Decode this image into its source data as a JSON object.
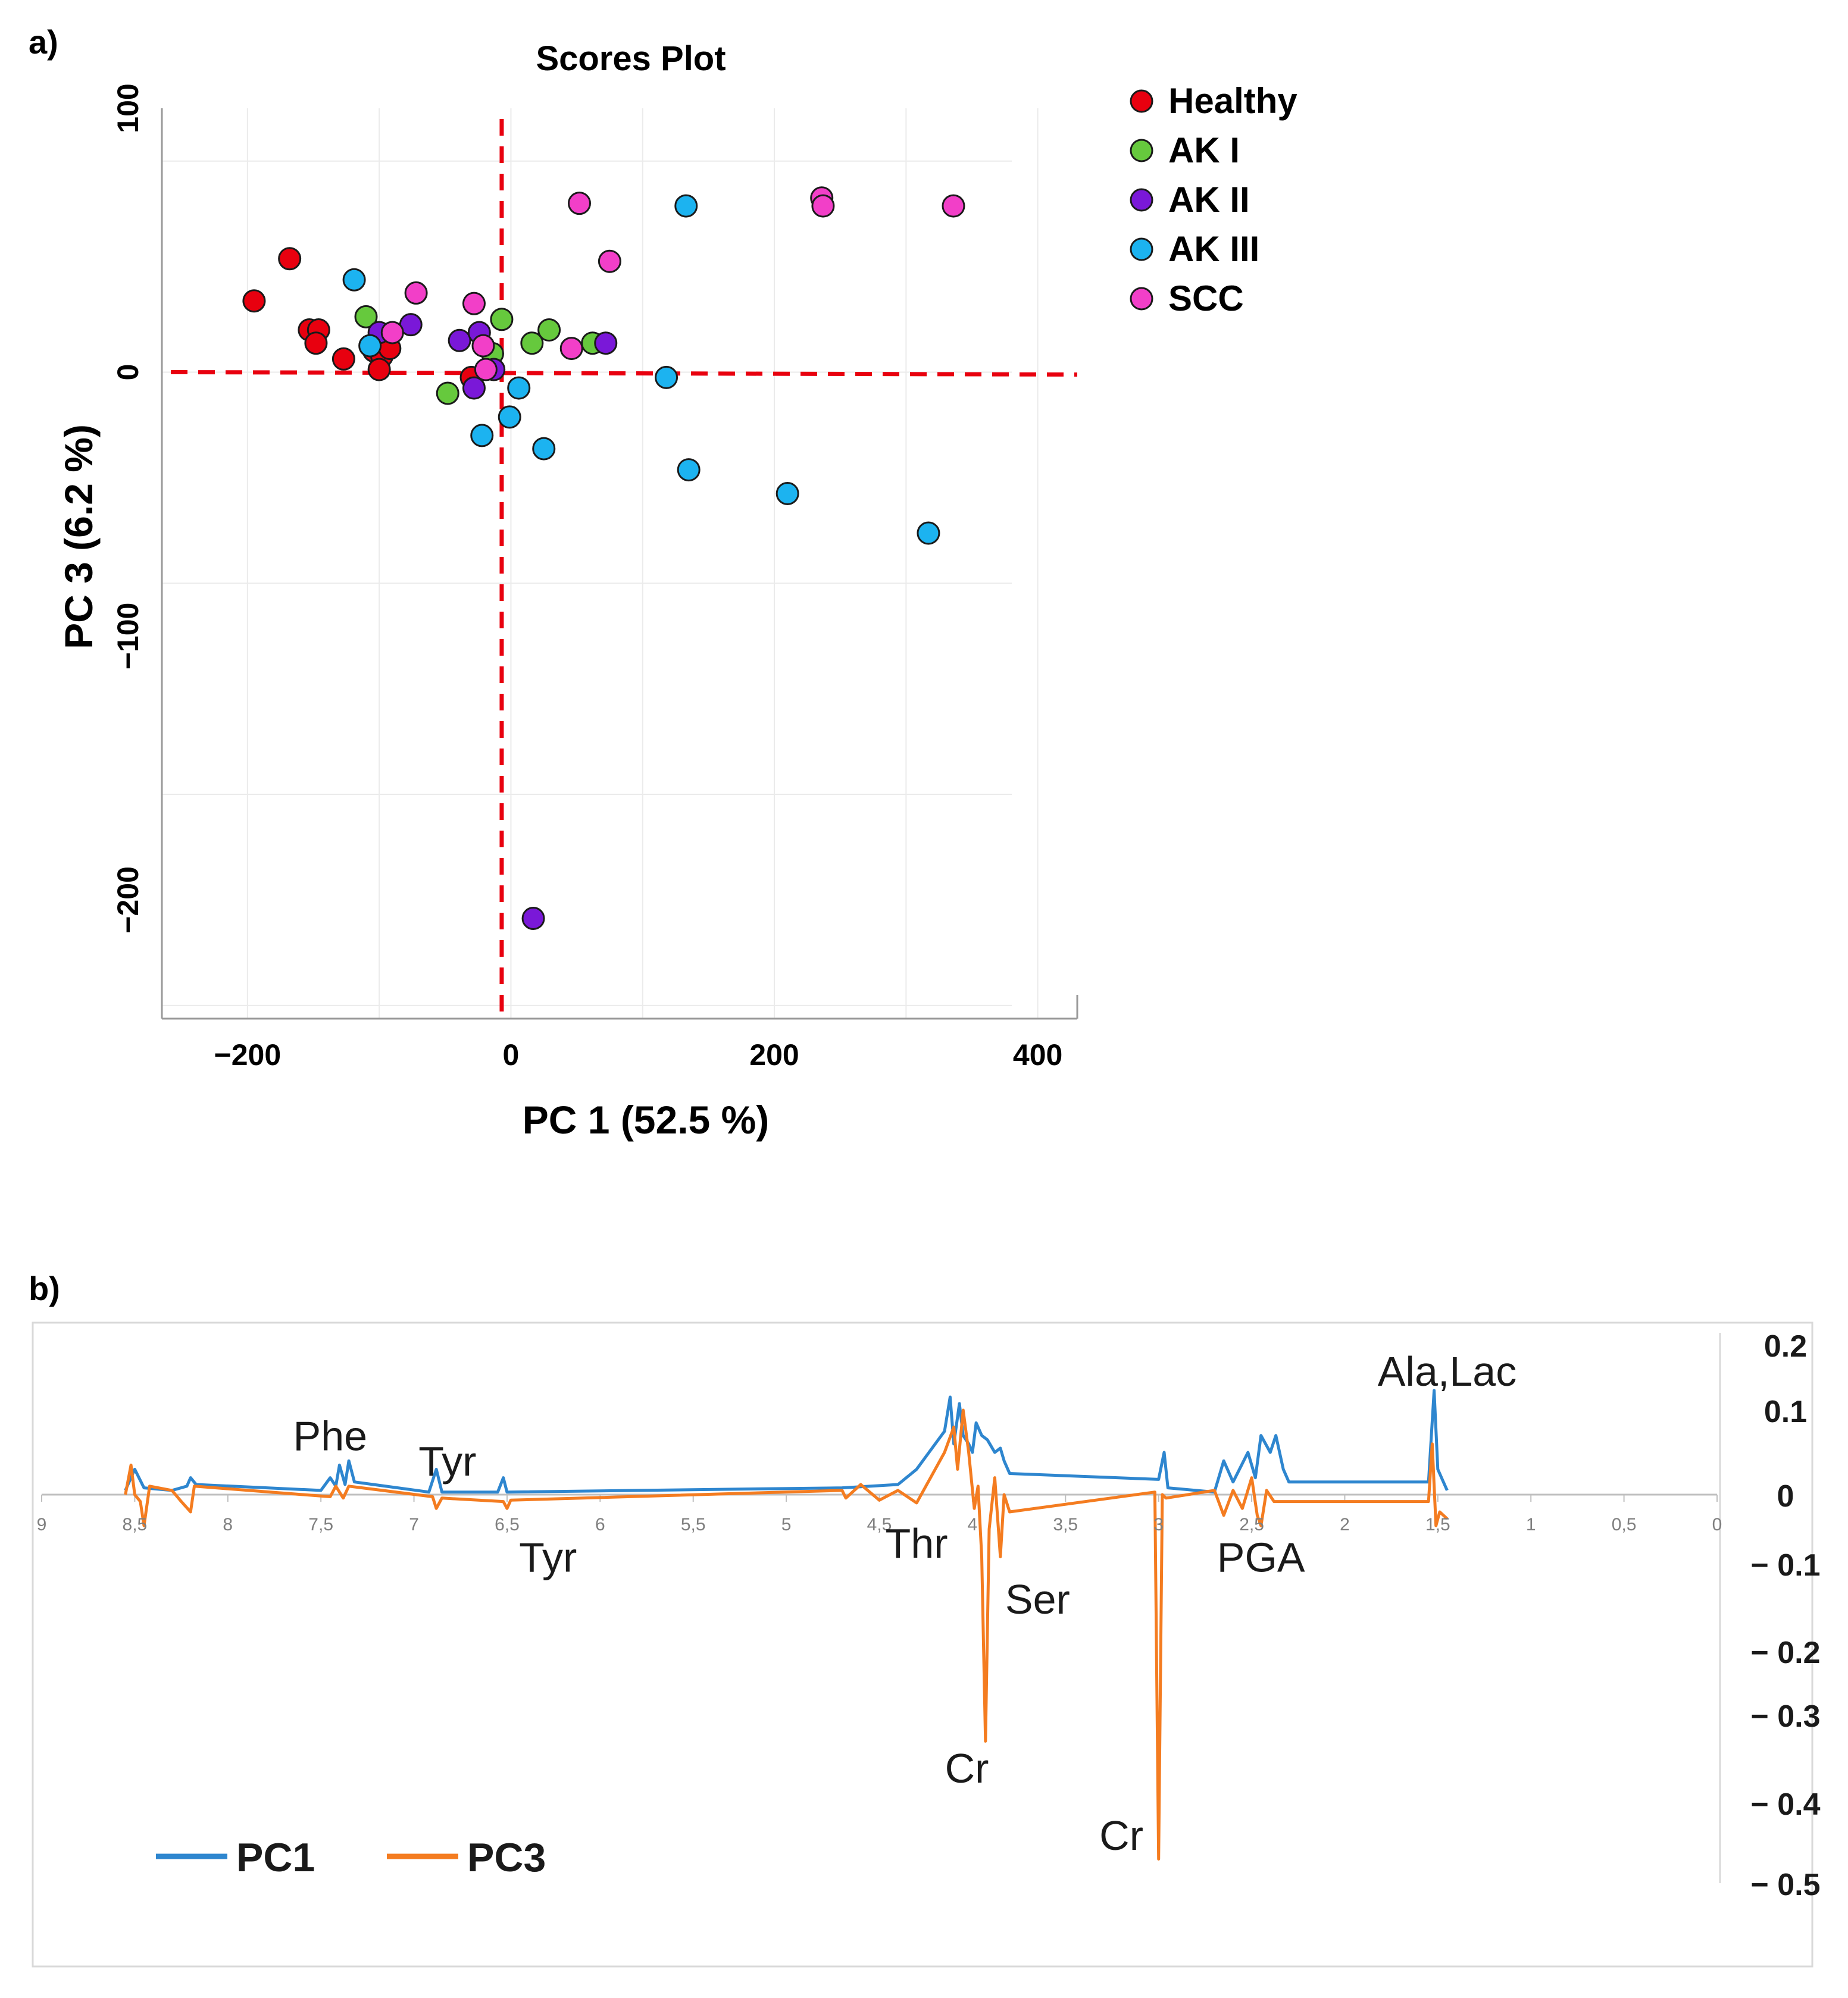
{
  "panel_a_label": "a)",
  "panel_b_label": "b)",
  "chart_data": [
    {
      "type": "scatter",
      "title": "Scores Plot",
      "xlabel": "PC 1 (52.5 %)",
      "ylabel": "PC 3 (6.2 %)",
      "xlim": [
        -265,
        430
      ],
      "ylim": [
        -245,
        100
      ],
      "xticks": [
        -200,
        0,
        200,
        400
      ],
      "xtick_labels": [
        "−200",
        "0",
        "200",
        "400"
      ],
      "yticks": [
        100,
        0,
        -100,
        -200
      ],
      "ytick_labels": [
        "100",
        "0",
        "−100",
        "−200"
      ],
      "grid": true,
      "reference_lines": {
        "x": -7,
        "y": 0
      },
      "legend_position": "right",
      "series": [
        {
          "name": "Healthy",
          "color": "#e8000f",
          "points": [
            [
              -195,
              27
            ],
            [
              -168,
              43
            ],
            [
              -153,
              16
            ],
            [
              -146,
              16
            ],
            [
              -148,
              11
            ],
            [
              -127,
              5
            ],
            [
              -104,
              8
            ],
            [
              -98,
              6
            ],
            [
              -92,
              9
            ],
            [
              -100,
              1
            ],
            [
              -30,
              -2
            ]
          ]
        },
        {
          "name": "AK I",
          "color": "#66c93d",
          "points": [
            [
              -110,
              21
            ],
            [
              -7,
              20
            ],
            [
              29,
              16
            ],
            [
              16,
              11
            ],
            [
              -14,
              7
            ],
            [
              62,
              11
            ],
            [
              -48,
              -8
            ]
          ]
        },
        {
          "name": "AK II",
          "color": "#7a18d8",
          "points": [
            [
              -100,
              15
            ],
            [
              -76,
              18
            ],
            [
              -39,
              12
            ],
            [
              -24,
              15
            ],
            [
              -13,
              1
            ],
            [
              -28,
              -6
            ],
            [
              72,
              11
            ],
            [
              17,
              -207
            ]
          ]
        },
        {
          "name": "AK III",
          "color": "#1cb3f0",
          "points": [
            [
              -119,
              35
            ],
            [
              -107,
              10
            ],
            [
              133,
              63
            ],
            [
              118,
              -2
            ],
            [
              6,
              -6
            ],
            [
              -1,
              -17
            ],
            [
              -22,
              -24
            ],
            [
              25,
              -29
            ],
            [
              135,
              -37
            ],
            [
              210,
              -46
            ],
            [
              317,
              -61
            ]
          ]
        },
        {
          "name": "SCC",
          "color": "#f23fc8",
          "points": [
            [
              52,
              64
            ],
            [
              236,
              66
            ],
            [
              237,
              63
            ],
            [
              336,
              63
            ],
            [
              75,
              42
            ],
            [
              -72,
              30
            ],
            [
              -28,
              26
            ],
            [
              -90,
              15
            ],
            [
              -21,
              10
            ],
            [
              46,
              9
            ],
            [
              -19,
              1
            ]
          ]
        }
      ]
    },
    {
      "type": "line",
      "title": "",
      "xlabel": "",
      "ylabel": "",
      "xlim": [
        9,
        0
      ],
      "ylim": [
        -0.5,
        0.2
      ],
      "xticks": [
        9,
        8.5,
        8,
        7.5,
        7,
        6.5,
        6,
        5.5,
        5,
        4.5,
        4,
        3.5,
        3,
        2.5,
        2,
        1.5,
        1,
        0.5,
        0
      ],
      "xtick_labels": [
        "9",
        "8,5",
        "8",
        "7,5",
        "7",
        "6,5",
        "6",
        "5,5",
        "5",
        "4,5",
        "4",
        "3,5",
        "3",
        "2,5",
        "2",
        "1,5",
        "1",
        "0,5",
        "0"
      ],
      "yticks": [
        0.2,
        0.1,
        0,
        -0.1,
        -0.2,
        -0.3,
        -0.4,
        -0.5
      ],
      "ytick_labels": [
        "0.2",
        "0.1",
        "0",
        "− 0.1",
        "− 0.2",
        "− 0.3",
        "− 0.4",
        "− 0.5"
      ],
      "legend_position": "bottom-left",
      "series": [
        {
          "name": "PC1",
          "color": "#2e86cf",
          "points": [
            [
              8.55,
              0.005
            ],
            [
              8.5,
              0.03
            ],
            [
              8.45,
              0.008
            ],
            [
              8.3,
              0.005
            ],
            [
              8.22,
              0.01
            ],
            [
              8.2,
              0.02
            ],
            [
              8.17,
              0.012
            ],
            [
              7.5,
              0.005
            ],
            [
              7.45,
              0.02
            ],
            [
              7.42,
              0.01
            ],
            [
              7.4,
              0.035
            ],
            [
              7.37,
              0.012
            ],
            [
              7.35,
              0.04
            ],
            [
              7.32,
              0.015
            ],
            [
              6.92,
              0.003
            ],
            [
              6.88,
              0.03
            ],
            [
              6.85,
              0.003
            ],
            [
              6.55,
              0.003
            ],
            [
              6.52,
              0.02
            ],
            [
              6.5,
              0.003
            ],
            [
              4.7,
              0.008
            ],
            [
              4.4,
              0.012
            ],
            [
              4.3,
              0.03
            ],
            [
              4.2,
              0.06
            ],
            [
              4.15,
              0.075
            ],
            [
              4.12,
              0.12
            ],
            [
              4.1,
              0.06
            ],
            [
              4.07,
              0.11
            ],
            [
              4.05,
              0.07
            ],
            [
              4.02,
              0.06
            ],
            [
              4.0,
              0.05
            ],
            [
              3.98,
              0.085
            ],
            [
              3.95,
              0.07
            ],
            [
              3.92,
              0.065
            ],
            [
              3.88,
              0.05
            ],
            [
              3.85,
              0.055
            ],
            [
              3.83,
              0.04
            ],
            [
              3.8,
              0.025
            ],
            [
              3.0,
              0.018
            ],
            [
              2.97,
              0.05
            ],
            [
              2.95,
              0.008
            ],
            [
              2.7,
              0.003
            ],
            [
              2.65,
              0.04
            ],
            [
              2.6,
              0.015
            ],
            [
              2.52,
              0.05
            ],
            [
              2.48,
              0.02
            ],
            [
              2.45,
              0.07
            ],
            [
              2.4,
              0.05
            ],
            [
              2.37,
              0.07
            ],
            [
              2.33,
              0.03
            ],
            [
              2.3,
              0.015
            ],
            [
              2.25,
              0.015
            ],
            [
              1.55,
              0.015
            ],
            [
              1.52,
              0.13
            ],
            [
              1.5,
              0.03
            ],
            [
              1.47,
              0.015
            ],
            [
              1.45,
              0.005
            ]
          ]
        },
        {
          "name": "PC3",
          "color": "#f47c20",
          "points": [
            [
              8.55,
              0.0
            ],
            [
              8.52,
              0.035
            ],
            [
              8.5,
              0.0
            ],
            [
              8.47,
              -0.01
            ],
            [
              8.45,
              -0.045
            ],
            [
              8.42,
              0.01
            ],
            [
              8.3,
              0.005
            ],
            [
              8.25,
              -0.01
            ],
            [
              8.2,
              -0.025
            ],
            [
              8.18,
              0.01
            ],
            [
              7.45,
              -0.003
            ],
            [
              7.42,
              0.01
            ],
            [
              7.38,
              -0.005
            ],
            [
              7.35,
              0.01
            ],
            [
              6.9,
              -0.003
            ],
            [
              6.88,
              -0.02
            ],
            [
              6.85,
              -0.005
            ],
            [
              6.52,
              -0.01
            ],
            [
              6.5,
              -0.02
            ],
            [
              6.48,
              -0.008
            ],
            [
              4.7,
              0.005
            ],
            [
              4.68,
              -0.005
            ],
            [
              4.6,
              0.012
            ],
            [
              4.5,
              -0.008
            ],
            [
              4.4,
              0.005
            ],
            [
              4.3,
              -0.012
            ],
            [
              4.2,
              0.03
            ],
            [
              4.15,
              0.05
            ],
            [
              4.1,
              0.08
            ],
            [
              4.08,
              0.03
            ],
            [
              4.05,
              0.1
            ],
            [
              4.02,
              0.05
            ],
            [
              3.99,
              -0.02
            ],
            [
              3.97,
              0.01
            ],
            [
              3.95,
              -0.09
            ],
            [
              3.93,
              -0.33
            ],
            [
              3.91,
              -0.05
            ],
            [
              3.88,
              0.02
            ],
            [
              3.85,
              -0.09
            ],
            [
              3.83,
              0.0
            ],
            [
              3.8,
              -0.025
            ],
            [
              3.02,
              0.003
            ],
            [
              3.0,
              -0.47
            ],
            [
              2.98,
              0.0
            ],
            [
              2.96,
              -0.005
            ],
            [
              2.7,
              0.005
            ],
            [
              2.65,
              -0.03
            ],
            [
              2.6,
              0.005
            ],
            [
              2.55,
              -0.02
            ],
            [
              2.5,
              0.02
            ],
            [
              2.47,
              -0.03
            ],
            [
              2.45,
              -0.045
            ],
            [
              2.42,
              0.005
            ],
            [
              2.38,
              -0.01
            ],
            [
              2.3,
              -0.01
            ],
            [
              2.25,
              -0.01
            ],
            [
              1.55,
              -0.01
            ],
            [
              1.53,
              0.06
            ],
            [
              1.51,
              -0.045
            ],
            [
              1.49,
              -0.025
            ],
            [
              1.45,
              -0.035
            ]
          ]
        }
      ],
      "annotations": [
        {
          "text": "Phe",
          "x": 7.45,
          "y": 0.07
        },
        {
          "text": "Tyr",
          "x": 6.82,
          "y": 0.04
        },
        {
          "text": "Tyr",
          "x": 6.28,
          "y": -0.09
        },
        {
          "text": "Thr",
          "x": 4.3,
          "y": -0.07
        },
        {
          "text": "Ser",
          "x": 3.65,
          "y": -0.14
        },
        {
          "text": "Cr",
          "x": 4.03,
          "y": -0.36
        },
        {
          "text": "Cr",
          "x": 3.2,
          "y": -0.44
        },
        {
          "text": "PGA",
          "x": 2.45,
          "y": -0.09
        },
        {
          "text": "Ala,Lac",
          "x": 1.45,
          "y": 0.16
        }
      ]
    }
  ]
}
